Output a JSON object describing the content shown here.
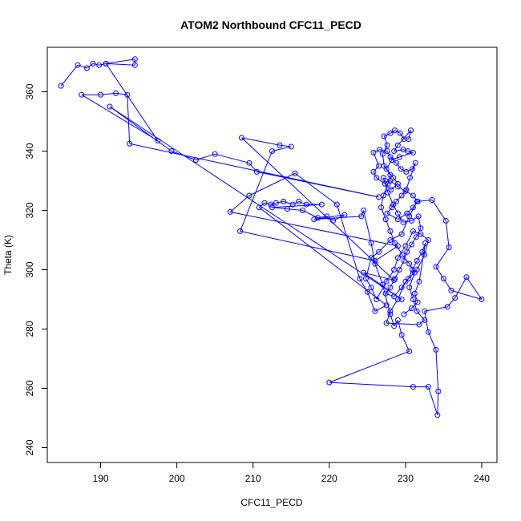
{
  "chart_data": {
    "type": "scatter",
    "title": "ATOM2 Northbound CFC11_PECD",
    "xlabel": "CFC11_PECD",
    "ylabel": "Theta (K)",
    "xlim": [
      183,
      242
    ],
    "ylim": [
      235,
      375
    ],
    "xticks": [
      190,
      200,
      210,
      220,
      230,
      240
    ],
    "yticks": [
      240,
      260,
      280,
      300,
      320,
      340,
      360
    ],
    "grid": false,
    "line_color": "#0000ff",
    "marker": "open-circle",
    "series": [
      {
        "values_xy": [
          [
            184.8,
            362
          ],
          [
            187.0,
            369
          ],
          [
            188.2,
            368
          ],
          [
            189.0,
            369.5
          ],
          [
            189.8,
            369
          ],
          [
            190.7,
            369.5
          ],
          [
            194.5,
            371
          ],
          [
            194.5,
            369
          ],
          [
            190.7,
            369.5
          ],
          [
            197.5,
            343.5
          ],
          [
            187.5,
            359
          ],
          [
            190.0,
            359
          ],
          [
            192.0,
            359.5
          ],
          [
            193.5,
            359
          ],
          [
            193.8,
            342.5
          ],
          [
            226.5,
            324.5
          ],
          [
            210.5,
            333
          ],
          [
            209.5,
            336
          ],
          [
            205.0,
            339
          ],
          [
            202.5,
            337
          ],
          [
            199.3,
            340
          ],
          [
            191.2,
            355
          ],
          [
            229.5,
            290
          ],
          [
            224.5,
            299
          ],
          [
            228.5,
            296.5
          ],
          [
            208.5,
            344.5
          ],
          [
            213.5,
            342
          ],
          [
            215.0,
            341.5
          ],
          [
            212.5,
            340
          ],
          [
            208.3,
            313
          ],
          [
            226.0,
            303
          ],
          [
            229.0,
            308
          ],
          [
            207.0,
            319.5
          ],
          [
            209.5,
            325
          ],
          [
            215.5,
            332.5
          ],
          [
            221.0,
            322
          ],
          [
            224.0,
            297
          ],
          [
            225.0,
            292.5
          ],
          [
            226.0,
            286
          ],
          [
            227.5,
            288
          ],
          [
            210.8,
            321
          ],
          [
            211.5,
            322.5
          ],
          [
            212.3,
            322
          ],
          [
            213.0,
            322.5
          ],
          [
            214.0,
            323
          ],
          [
            215.2,
            322
          ],
          [
            216.0,
            323
          ],
          [
            217.0,
            322
          ],
          [
            219.0,
            322
          ],
          [
            212.5,
            321
          ],
          [
            214.5,
            320.5
          ],
          [
            216.5,
            320
          ],
          [
            218.5,
            317.5
          ],
          [
            219.7,
            318
          ],
          [
            220.5,
            316.5
          ],
          [
            222.0,
            318.5
          ],
          [
            218.0,
            317
          ],
          [
            224.2,
            318
          ],
          [
            224.5,
            320
          ],
          [
            225.5,
            309
          ],
          [
            226.0,
            302
          ],
          [
            227.0,
            295
          ],
          [
            228.0,
            285
          ],
          [
            228.5,
            281
          ],
          [
            229.0,
            283
          ],
          [
            229.5,
            278
          ],
          [
            230.5,
            272.5
          ],
          [
            220.0,
            262
          ],
          [
            231.0,
            260.5
          ],
          [
            233.0,
            260.5
          ],
          [
            234.2,
            251
          ],
          [
            234.3,
            259
          ],
          [
            234.0,
            273
          ],
          [
            233.0,
            279
          ],
          [
            232.5,
            286
          ],
          [
            235.5,
            287.5
          ],
          [
            236.5,
            290.5
          ],
          [
            238.0,
            297.5
          ],
          [
            240.0,
            290
          ],
          [
            236.0,
            293
          ],
          [
            235.0,
            297
          ],
          [
            234.0,
            301
          ],
          [
            235.7,
            307.5
          ],
          [
            235.3,
            316.5
          ],
          [
            233.5,
            323.5
          ],
          [
            231.5,
            323
          ],
          [
            230.5,
            318
          ],
          [
            229.5,
            312
          ],
          [
            228.0,
            310
          ],
          [
            226.5,
            306
          ],
          [
            225.5,
            304
          ],
          [
            224.8,
            297
          ],
          [
            225.5,
            294
          ],
          [
            226.2,
            290
          ],
          [
            227.5,
            296
          ],
          [
            228.5,
            300
          ],
          [
            229.0,
            304
          ],
          [
            230.0,
            308
          ],
          [
            231.0,
            313
          ],
          [
            232.0,
            312
          ],
          [
            233.0,
            310
          ],
          [
            232.5,
            305
          ],
          [
            231.5,
            300
          ],
          [
            230.0,
            296
          ],
          [
            229.0,
            290
          ],
          [
            228.0,
            286
          ],
          [
            227.5,
            282
          ],
          [
            231.8,
            281.5
          ],
          [
            232.5,
            283
          ],
          [
            231.5,
            286
          ],
          [
            231.0,
            290
          ],
          [
            230.5,
            294
          ],
          [
            231.2,
            299
          ],
          [
            230.5,
            302
          ],
          [
            229.6,
            305
          ],
          [
            228.6,
            309
          ],
          [
            228.0,
            313
          ],
          [
            227.4,
            317
          ],
          [
            226.8,
            321
          ],
          [
            227.1,
            325
          ],
          [
            227.7,
            329
          ],
          [
            228.0,
            332
          ],
          [
            227.2,
            335
          ],
          [
            227.0,
            339
          ],
          [
            227.6,
            342
          ],
          [
            227.2,
            345
          ],
          [
            228.0,
            346
          ],
          [
            228.6,
            347
          ],
          [
            229.3,
            346
          ],
          [
            229.8,
            344
          ],
          [
            230.4,
            344
          ],
          [
            230.7,
            347
          ],
          [
            229.0,
            342
          ],
          [
            228.5,
            340
          ],
          [
            229.7,
            340.5
          ],
          [
            230.3,
            340
          ],
          [
            231.0,
            339.5
          ],
          [
            229.2,
            338
          ],
          [
            228.2,
            337
          ],
          [
            227.5,
            334
          ],
          [
            228.4,
            331
          ],
          [
            229.0,
            329
          ],
          [
            228.1,
            327
          ],
          [
            227.3,
            329
          ],
          [
            226.2,
            331
          ],
          [
            225.8,
            333
          ],
          [
            226.5,
            335
          ],
          [
            225.8,
            339.5
          ],
          [
            226.6,
            340.5
          ],
          [
            227.6,
            340
          ],
          [
            228.0,
            338
          ],
          [
            228.8,
            336
          ],
          [
            229.4,
            334
          ],
          [
            230.1,
            333
          ],
          [
            230.9,
            334
          ],
          [
            231.3,
            336
          ],
          [
            230.6,
            331
          ],
          [
            230.1,
            327
          ],
          [
            229.5,
            325
          ],
          [
            228.8,
            323
          ],
          [
            228.2,
            321
          ],
          [
            227.6,
            319
          ],
          [
            229.0,
            317
          ],
          [
            230.2,
            319
          ],
          [
            231.0,
            321
          ],
          [
            231.6,
            323
          ],
          [
            231.0,
            325
          ],
          [
            230.0,
            326.5
          ],
          [
            229.0,
            328
          ],
          [
            228.0,
            330
          ],
          [
            227.1,
            331
          ],
          [
            227.7,
            326
          ],
          [
            228.4,
            322
          ],
          [
            229.0,
            319
          ],
          [
            229.7,
            316
          ],
          [
            230.8,
            316.5
          ],
          [
            231.7,
            318
          ],
          [
            232.0,
            314
          ],
          [
            231.4,
            311
          ],
          [
            230.8,
            308.5
          ],
          [
            230.2,
            306
          ],
          [
            229.8,
            303
          ],
          [
            229.2,
            300
          ],
          [
            228.6,
            297
          ],
          [
            228.0,
            294
          ],
          [
            227.4,
            292
          ],
          [
            228.5,
            291
          ],
          [
            229.5,
            294
          ],
          [
            230.4,
            297
          ],
          [
            230.9,
            300
          ],
          [
            231.5,
            303
          ],
          [
            232.2,
            306
          ],
          [
            232.6,
            309
          ],
          [
            231.8,
            296
          ],
          [
            231.2,
            292
          ],
          [
            231.6,
            289
          ],
          [
            230.8,
            287
          ],
          [
            229.8,
            285
          ]
        ]
      }
    ]
  }
}
